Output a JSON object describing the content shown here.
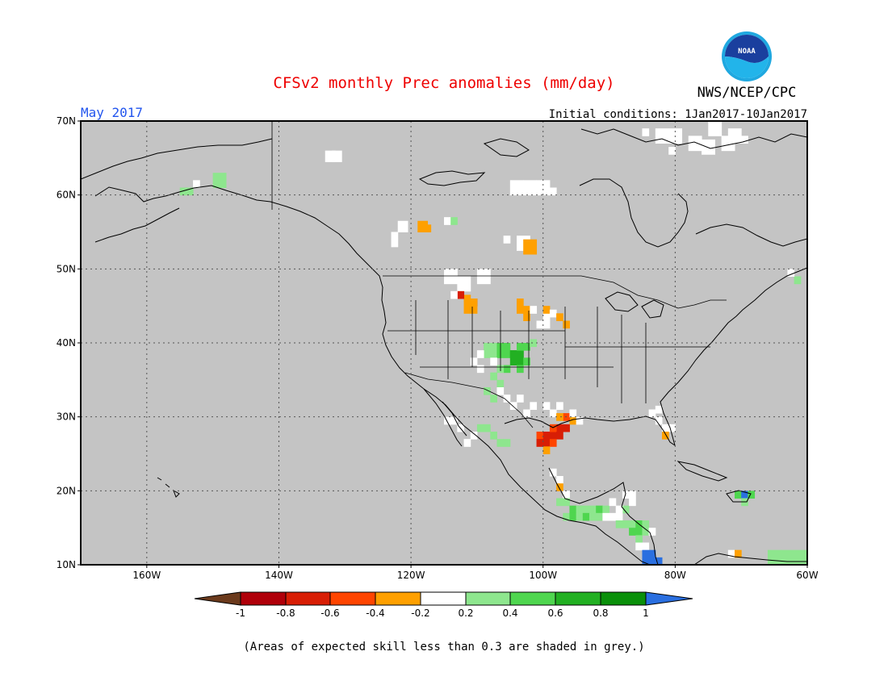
{
  "header": {
    "title": "CFSv2 monthly Prec anomalies (mm/day)",
    "agency": "NWS/NCEP/CPC",
    "logo_text": "NOAA",
    "month": "May 2017",
    "initial_conditions": "Initial conditions: 1Jan2017-10Jan2017"
  },
  "map": {
    "lat_range": [
      10,
      70
    ],
    "lon_range": [
      -170,
      -60
    ],
    "lat_ticks": [
      "10N",
      "20N",
      "30N",
      "40N",
      "50N",
      "60N",
      "70N"
    ],
    "lon_ticks": [
      "160W",
      "140W",
      "120W",
      "100W",
      "80W",
      "60W"
    ],
    "grid": "dotted",
    "background": "grey (skill < 0.3)"
  },
  "legend": {
    "labels": [
      "-1",
      "-0.8",
      "-0.6",
      "-0.4",
      "-0.2",
      "0.2",
      "0.4",
      "0.6",
      "0.8",
      "1"
    ],
    "colors": [
      "#6b3a1c",
      "#b0000a",
      "#d81e05",
      "#ff4500",
      "#ffa000",
      "#ffffff",
      "#8ee68e",
      "#4fd64f",
      "#22b022",
      "#0a900a",
      "#2a6fe0"
    ]
  },
  "footnote": "(Areas of expected skill less than 0.3 are shaded in grey.)",
  "colors": {
    "title": "#ee0000",
    "month": "#2255ee",
    "land_bg": "#c4c4c4"
  }
}
